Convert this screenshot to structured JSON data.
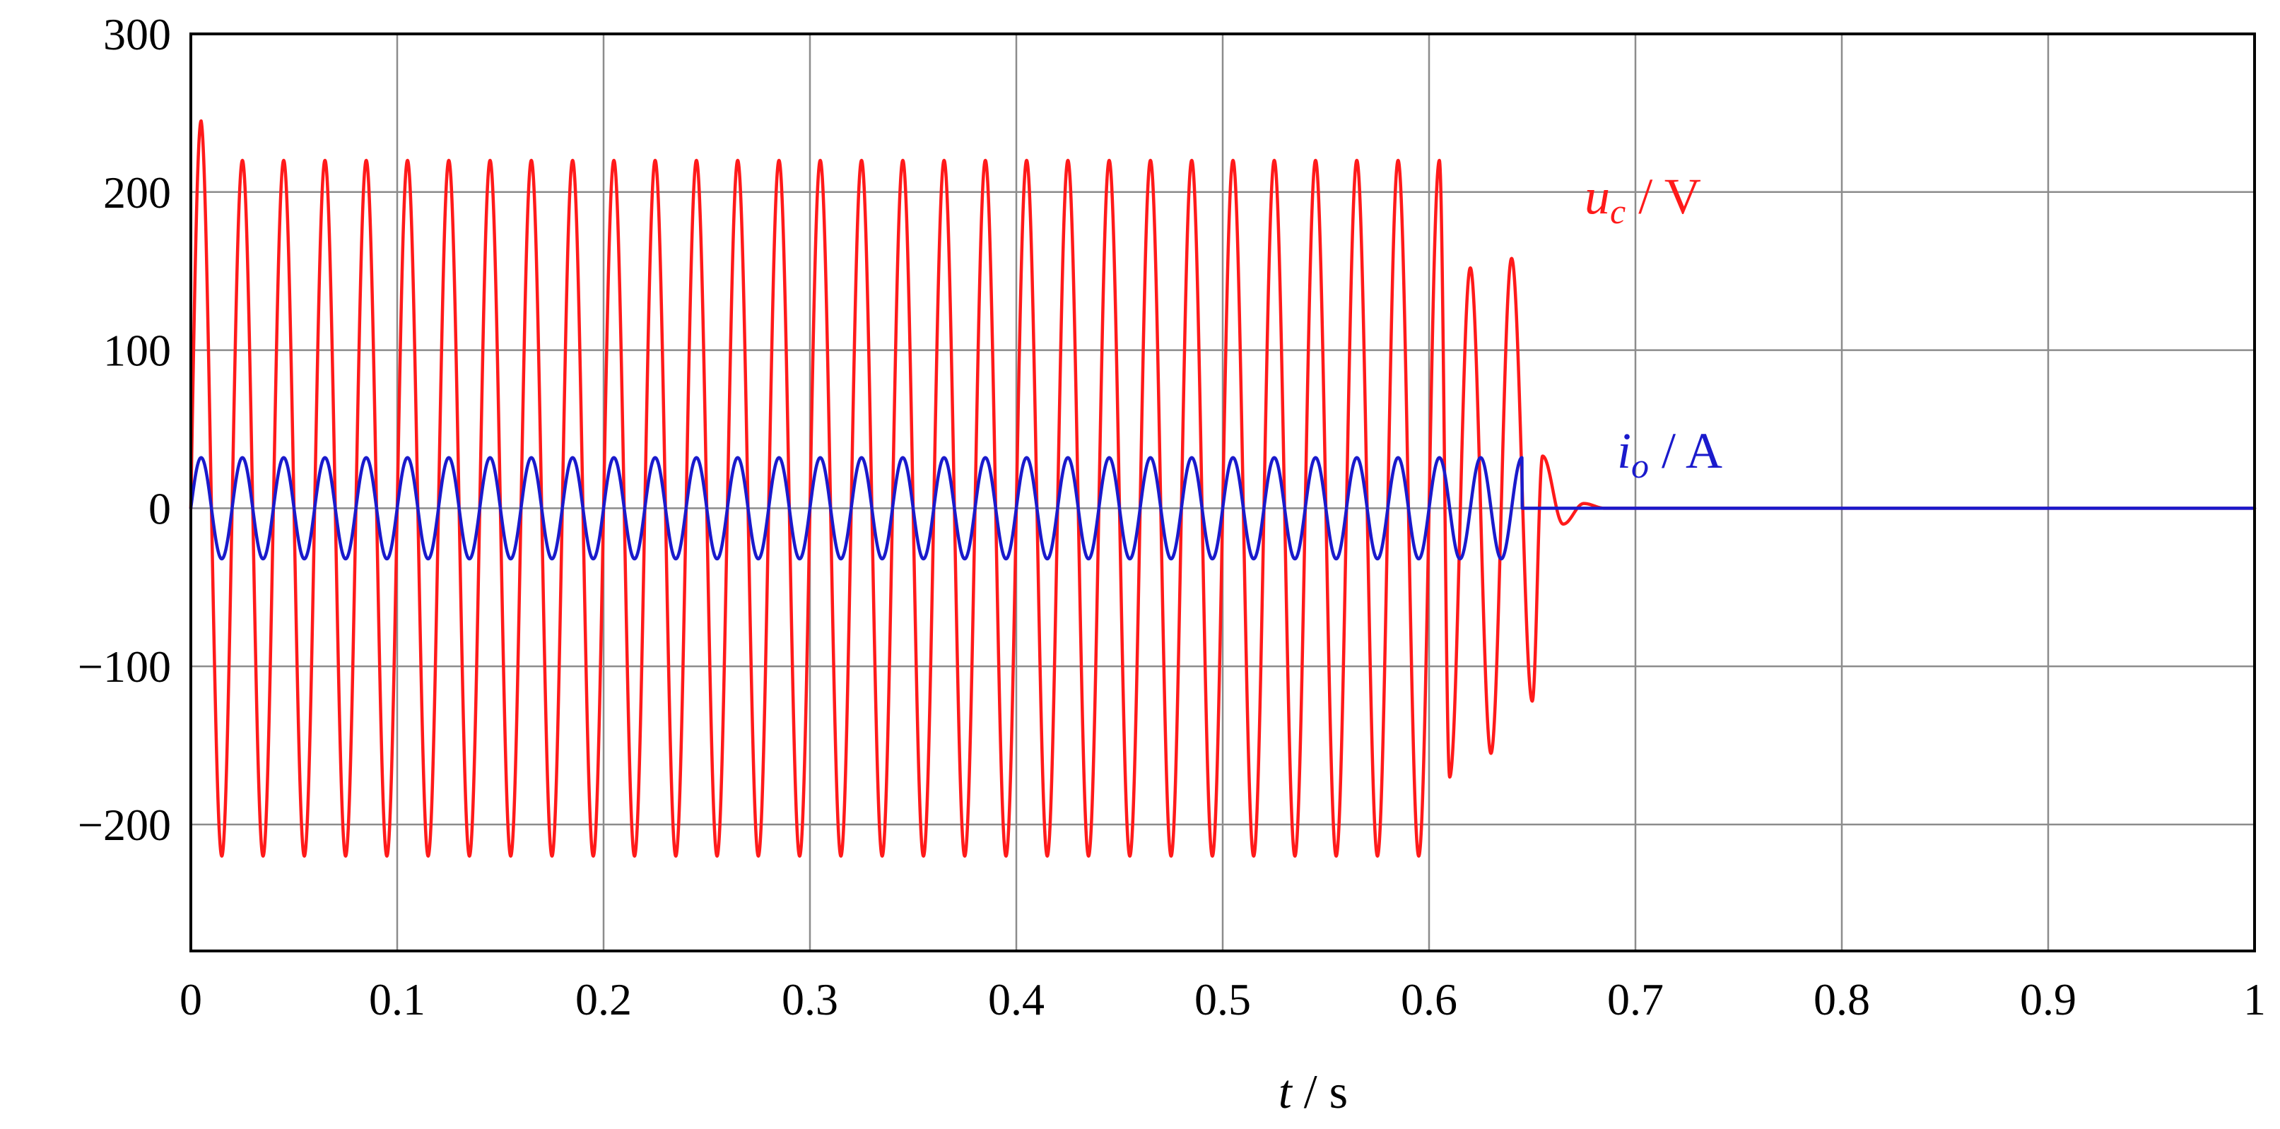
{
  "chart_data": {
    "type": "line",
    "xlabel": {
      "var": "t",
      "unit": " / s"
    },
    "xlim": [
      0,
      1
    ],
    "ylim": [
      -280,
      300
    ],
    "x_ticks": [
      0,
      0.1,
      0.2,
      0.3,
      0.4,
      0.5,
      0.6,
      0.7,
      0.8,
      0.9,
      1
    ],
    "x_tick_labels": [
      "0",
      "0.1",
      "0.2",
      "0.3",
      "0.4",
      "0.5",
      "0.6",
      "0.7",
      "0.8",
      "0.9",
      "1"
    ],
    "y_ticks": [
      300,
      200,
      100,
      0,
      -100,
      -200
    ],
    "y_tick_labels": [
      "300",
      "200",
      "100",
      "0",
      "−100",
      "−200"
    ],
    "grid": true,
    "series": [
      {
        "name": "u_c / V",
        "label": {
          "var": "u",
          "sub": "c",
          "unit": " / V"
        },
        "color": "#ff1a1a",
        "waveform": "sine",
        "frequency_hz": 50,
        "amplitude": 220,
        "start_peak": 245,
        "end_of_steady_state_s": 0.6,
        "decay_peaks": [
          {
            "t": 0.605,
            "v": 220
          },
          {
            "t": 0.61,
            "v": -170
          },
          {
            "t": 0.62,
            "v": 152
          },
          {
            "t": 0.63,
            "v": -155
          },
          {
            "t": 0.64,
            "v": 158
          },
          {
            "t": 0.65,
            "v": -122
          },
          {
            "t": 0.655,
            "v": 33
          },
          {
            "t": 0.665,
            "v": -10
          },
          {
            "t": 0.675,
            "v": 3
          }
        ],
        "settles_to": 0
      },
      {
        "name": "i_o / A",
        "label": {
          "var": "i",
          "sub": "o",
          "unit": " / A"
        },
        "color": "#1a1acc",
        "waveform": "sine",
        "frequency_hz": 50,
        "amplitude": 32,
        "off_at_s": 0.645,
        "settles_to": 0
      }
    ]
  }
}
